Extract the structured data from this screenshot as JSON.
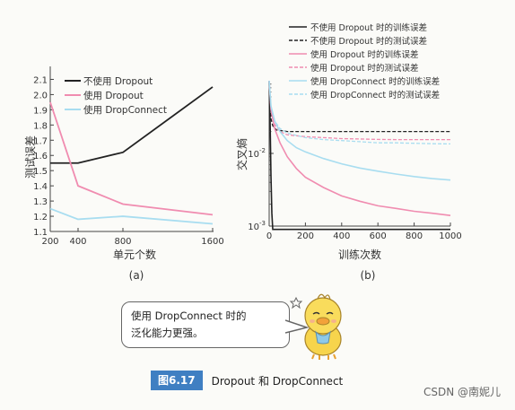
{
  "chart_data": [
    {
      "type": "line",
      "panel_label": "(a)",
      "xlabel": "单元个数",
      "ylabel": "测试误差",
      "x_ticks": [
        200,
        400,
        800,
        1600
      ],
      "y_ticks": [
        1.1,
        1.2,
        1.3,
        1.4,
        1.5,
        1.6,
        1.7,
        1.8,
        1.9,
        2.0,
        2.1
      ],
      "ylim": [
        1.1,
        2.15
      ],
      "legend_position": "top-left",
      "series": [
        {
          "name": "不使用 Dropout",
          "color": "#222222",
          "x": [
            200,
            400,
            800,
            1600
          ],
          "y": [
            1.55,
            1.55,
            1.62,
            2.05
          ]
        },
        {
          "name": "使用 Dropout",
          "color": "#f08cb0",
          "x": [
            200,
            400,
            800,
            1600
          ],
          "y": [
            1.95,
            1.4,
            1.28,
            1.21
          ]
        },
        {
          "name": "使用 DropConnect",
          "color": "#a8ddf0",
          "x": [
            200,
            400,
            800,
            1600
          ],
          "y": [
            1.25,
            1.18,
            1.2,
            1.15
          ]
        }
      ]
    },
    {
      "type": "line",
      "panel_label": "(b)",
      "xlabel": "训练次数",
      "ylabel": "交叉熵",
      "x_ticks": [
        0,
        200,
        400,
        600,
        800,
        1000
      ],
      "y_ticks": [
        "10^-3",
        "10^-2"
      ],
      "y_scale": "log",
      "xlim": [
        0,
        1000
      ],
      "ylim": [
        0.001,
        0.1
      ],
      "legend_position": "top-right",
      "series": [
        {
          "name": "不使用 Dropout 时的训练误差",
          "color": "#222222",
          "style": "solid",
          "x": [
            0,
            5,
            10,
            15,
            20,
            1000
          ],
          "y": [
            0.1,
            0.03,
            0.005,
            0.0015,
            0.0009,
            0.0009
          ]
        },
        {
          "name": "不使用 Dropout 时的测试误差",
          "color": "#222222",
          "style": "dashed",
          "x": [
            0,
            10,
            20,
            40,
            100,
            200,
            400,
            600,
            800,
            1000
          ],
          "y": [
            0.1,
            0.03,
            0.024,
            0.021,
            0.02,
            0.02,
            0.02,
            0.02,
            0.02,
            0.02
          ]
        },
        {
          "name": "使用 Dropout 时的训练误差",
          "color": "#f08cb0",
          "style": "solid",
          "x": [
            0,
            10,
            30,
            60,
            100,
            150,
            200,
            300,
            400,
            500,
            600,
            700,
            800,
            900,
            1000
          ],
          "y": [
            0.1,
            0.04,
            0.022,
            0.014,
            0.009,
            0.0062,
            0.0047,
            0.0034,
            0.0026,
            0.0022,
            0.0019,
            0.00175,
            0.0016,
            0.0015,
            0.0014
          ]
        },
        {
          "name": "使用 Dropout 时的测试误差",
          "color": "#f08cb0",
          "style": "dashed",
          "x": [
            0,
            10,
            30,
            60,
            100,
            200,
            300,
            400,
            500,
            600,
            700,
            800,
            900,
            1000
          ],
          "y": [
            0.1,
            0.04,
            0.025,
            0.02,
            0.018,
            0.017,
            0.0165,
            0.016,
            0.0158,
            0.0156,
            0.0155,
            0.0155,
            0.0155,
            0.0155
          ]
        },
        {
          "name": "使用 DropConnect 时的训练误差",
          "color": "#a8ddf0",
          "style": "solid",
          "x": [
            0,
            10,
            30,
            60,
            100,
            150,
            200,
            300,
            400,
            500,
            600,
            700,
            800,
            900,
            1000
          ],
          "y": [
            0.1,
            0.045,
            0.028,
            0.02,
            0.015,
            0.012,
            0.0105,
            0.0085,
            0.0072,
            0.0063,
            0.0057,
            0.0052,
            0.0048,
            0.0045,
            0.0043
          ]
        },
        {
          "name": "使用 DropConnect 时的测试误差",
          "color": "#a8ddf0",
          "style": "dashed",
          "x": [
            0,
            10,
            30,
            60,
            100,
            200,
            300,
            400,
            500,
            600,
            700,
            800,
            900,
            1000
          ],
          "y": [
            0.1,
            0.045,
            0.028,
            0.022,
            0.019,
            0.0165,
            0.0155,
            0.015,
            0.0145,
            0.014,
            0.014,
            0.0138,
            0.0136,
            0.0135
          ]
        }
      ]
    }
  ],
  "speech_bubble": {
    "line1": "使用 DropConnect 时的",
    "line2": "泛化能力更强。"
  },
  "caption": {
    "figure_number": "图6.17",
    "text": "Dropout 和 DropConnect"
  },
  "watermark": "CSDN @南妮儿"
}
